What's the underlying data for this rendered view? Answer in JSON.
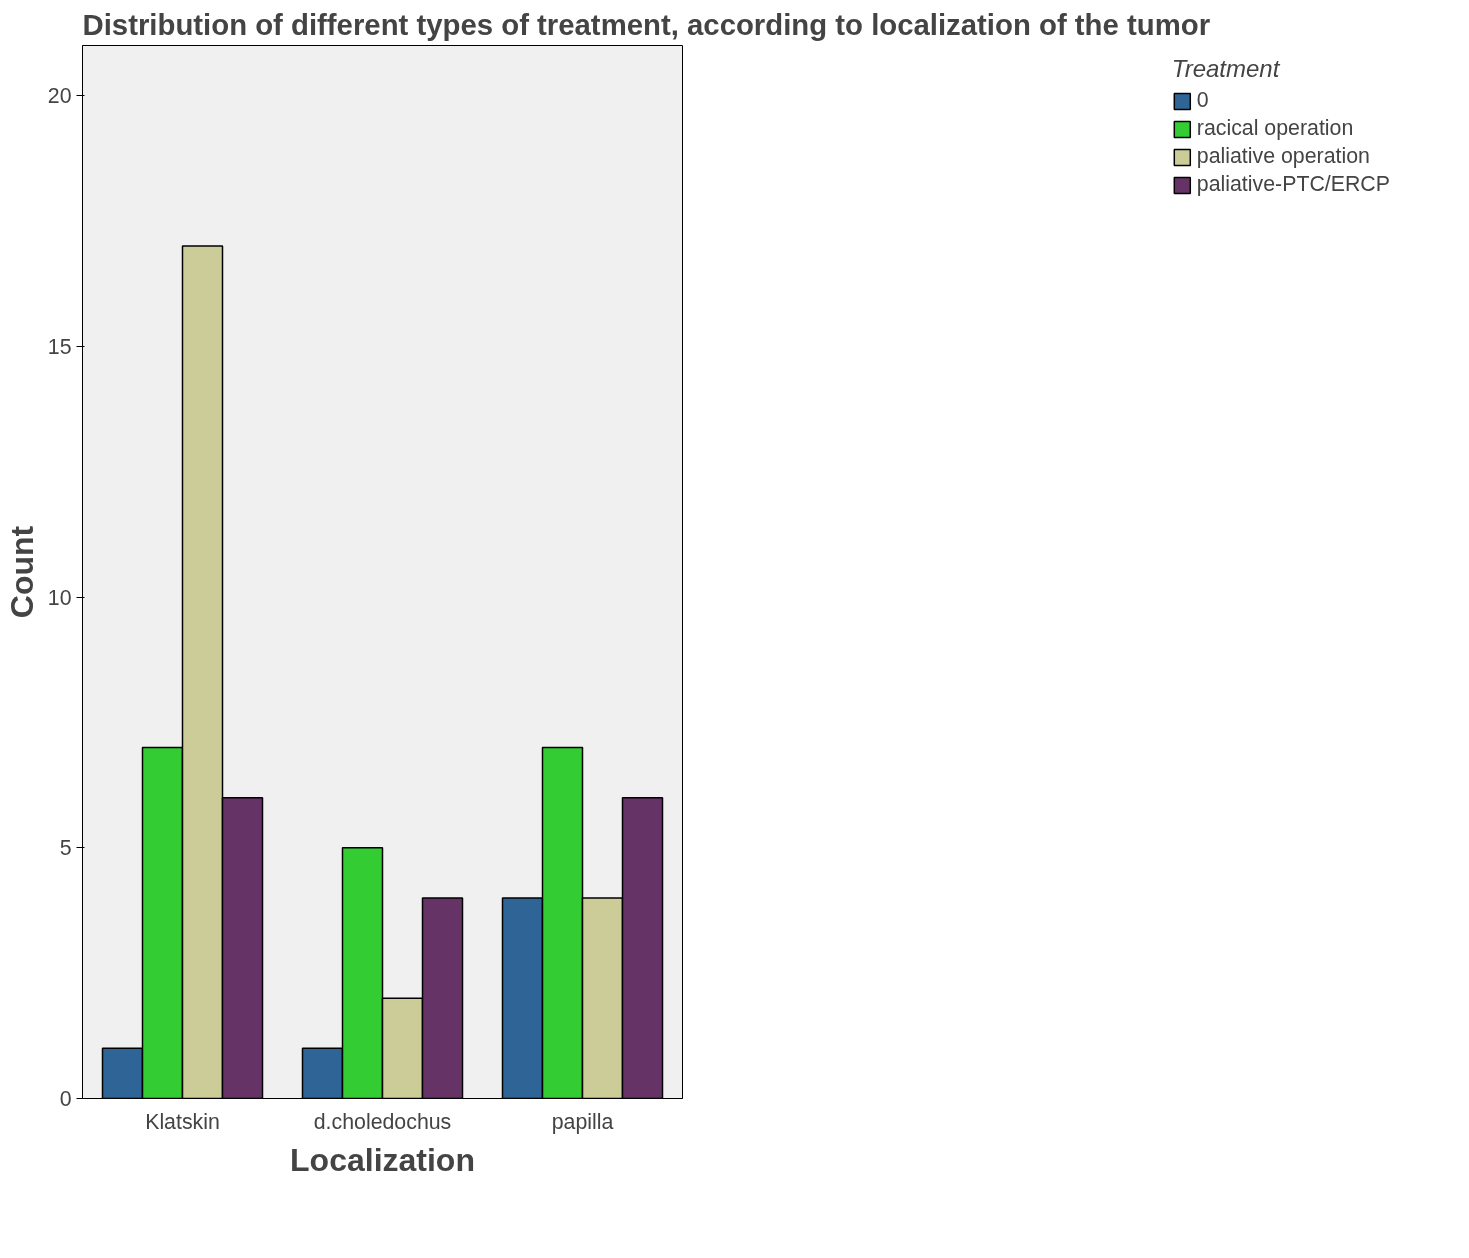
{
  "chart_data": {
    "type": "bar",
    "title": "Distribution of different types of treatment, according to localization of the tumor",
    "xlabel": "Localization",
    "ylabel": "Count",
    "legend_title": "Treatment",
    "categories": [
      "Klatskin",
      "d.choledochus",
      "papilla"
    ],
    "series": [
      {
        "name": "0",
        "color": "#2f6496",
        "values": [
          1,
          1,
          4
        ]
      },
      {
        "name": "racical operation",
        "color": "#33cc33",
        "values": [
          7,
          5,
          7
        ]
      },
      {
        "name": "paliative operation",
        "color": "#cccc99",
        "values": [
          17,
          2,
          4
        ]
      },
      {
        "name": "paliative-PTC/ERCP",
        "color": "#663366",
        "values": [
          6,
          4,
          6
        ]
      }
    ],
    "ylim": [
      0,
      21
    ],
    "yticks": [
      0,
      5,
      10,
      15,
      20
    ],
    "grid": false,
    "legend": "right"
  }
}
